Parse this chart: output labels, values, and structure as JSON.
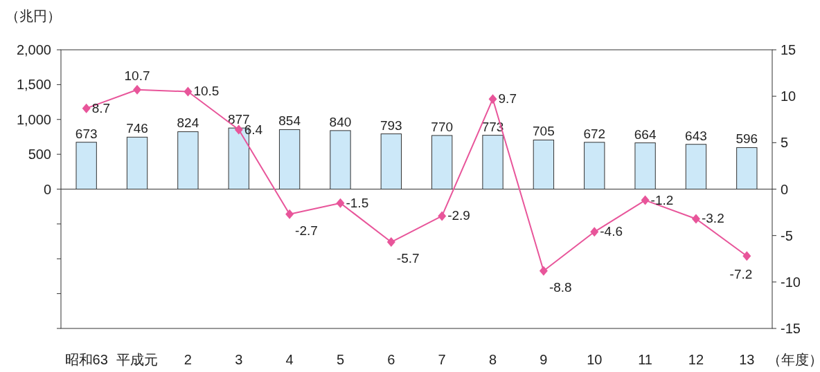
{
  "chart_data": {
    "type": "bar",
    "ylabel": "（兆円）",
    "xlabel": "（年度）",
    "categories": [
      "昭和63",
      "平成元",
      "2",
      "3",
      "4",
      "5",
      "6",
      "7",
      "8",
      "9",
      "10",
      "11",
      "12",
      "13"
    ],
    "series": [
      {
        "color": "#cce8f8",
        "values": [
          673,
          746,
          824,
          877,
          854,
          840,
          793,
          770,
          773,
          705,
          672,
          664,
          643,
          596
        ]
      },
      {
        "type": "line",
        "axis": "y2",
        "color": "#e8559a",
        "marker": "diamond",
        "line_style": "solid",
        "values": [
          8.7,
          10.7,
          10.5,
          6.4,
          -2.7,
          -1.5,
          -5.7,
          -2.9,
          9.7,
          -8.8,
          -4.6,
          -1.2,
          -3.2,
          -7.2
        ]
      }
    ],
    "ylim": [
      -2000,
      2000
    ],
    "yticks": [
      {
        "value": -2000,
        "label": null
      },
      {
        "value": -1500,
        "label": null
      },
      {
        "value": -1000,
        "label": null
      },
      {
        "value": -500,
        "label": null
      },
      {
        "value": 0,
        "label": "0"
      },
      {
        "value": 500,
        "label": "500"
      },
      {
        "value": 1000,
        "label": "1,000"
      },
      {
        "value": 1500,
        "label": "1,500"
      },
      {
        "value": 2000,
        "label": "2,000"
      }
    ],
    "y2lim": [
      -15,
      15
    ],
    "y2ticks": [
      -15,
      -10,
      -5,
      0,
      5,
      10,
      15
    ],
    "data_labels": true
  }
}
